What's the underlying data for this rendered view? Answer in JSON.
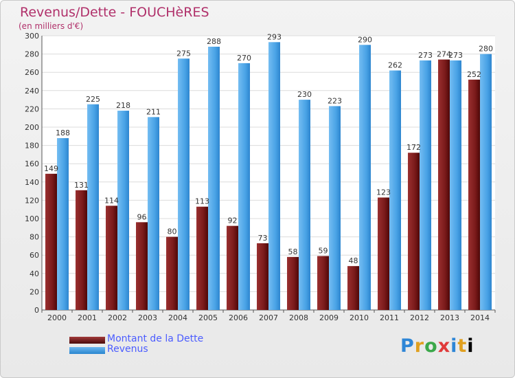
{
  "chart_data": {
    "type": "bar",
    "title": "Revenus/Dette - FOUCHèRES",
    "subtitle": "(en milliers d'€)",
    "categories": [
      "2000",
      "2001",
      "2002",
      "2003",
      "2004",
      "2005",
      "2006",
      "2007",
      "2008",
      "2009",
      "2010",
      "2011",
      "2012",
      "2013",
      "2014"
    ],
    "series": [
      {
        "name": "Montant de la Dette",
        "color": "#6e1414",
        "values": [
          149,
          131,
          114,
          96,
          80,
          113,
          92,
          73,
          58,
          59,
          48,
          123,
          172,
          274,
          252
        ]
      },
      {
        "name": "Revenus",
        "color": "#4aa3e6",
        "values": [
          188,
          225,
          218,
          211,
          275,
          288,
          270,
          293,
          230,
          223,
          290,
          262,
          273,
          273,
          280
        ]
      }
    ],
    "ylim": [
      0,
      300
    ],
    "yticks": [
      "0",
      "20",
      "40",
      "60",
      "80",
      "100",
      "120",
      "140",
      "160",
      "180",
      "200",
      "220",
      "240",
      "260",
      "280",
      "300"
    ],
    "grid": true,
    "legend": "bottom-left"
  },
  "brand": {
    "letters": [
      "P",
      "r",
      "o",
      "x",
      "i",
      "t",
      "i"
    ]
  }
}
